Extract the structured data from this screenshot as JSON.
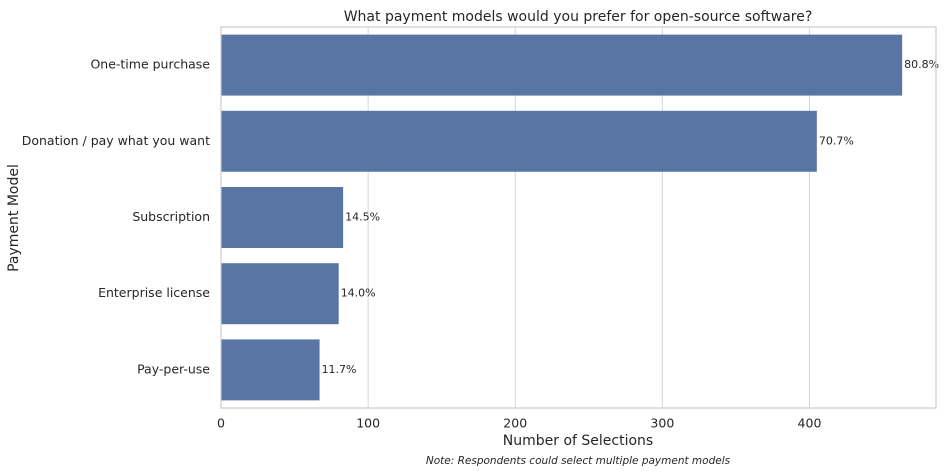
{
  "chart_data": {
    "type": "barh",
    "title": "What payment models would you prefer for open-source software?",
    "x_label": "Number of Selections",
    "y_label": "Payment Model",
    "note": "Note: Respondents could select multiple payment models",
    "categories": [
      "One-time purchase",
      "Donation / pay what you want",
      "Subscription",
      "Enterprise license",
      "Pay-per-use"
    ],
    "values": [
      463,
      405,
      83,
      80,
      67
    ],
    "bar_labels": [
      "80.8%",
      "70.7%",
      "14.5%",
      "14.0%",
      "11.7%"
    ],
    "color": "#5975a4",
    "xlim": [
      0,
      486
    ],
    "xticks": [
      0,
      100,
      200,
      300,
      400
    ],
    "grid": true
  }
}
